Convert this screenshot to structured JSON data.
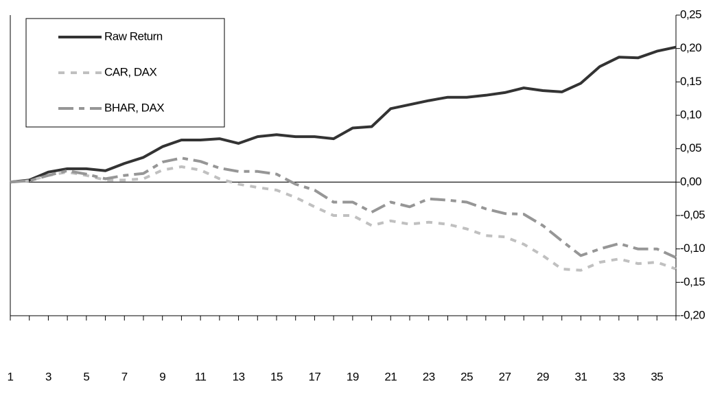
{
  "chart_data": {
    "type": "line",
    "categories": [
      "1",
      null,
      "3",
      null,
      "5",
      null,
      "7",
      null,
      "9",
      null,
      "11",
      null,
      "13",
      null,
      "15",
      null,
      "17",
      null,
      "19",
      null,
      "21",
      null,
      "23",
      null,
      "25",
      null,
      "27",
      null,
      "29",
      null,
      "31",
      null,
      "33",
      null,
      "35",
      null
    ],
    "series": [
      {
        "name": "Raw Return",
        "color": "#333333",
        "style": "solid",
        "values": [
          0,
          0.003,
          0.015,
          0.02,
          0.02,
          0.017,
          0.028,
          0.037,
          0.053,
          0.063,
          0.063,
          0.065,
          0.058,
          0.068,
          0.071,
          0.068,
          0.068,
          0.065,
          0.081,
          0.083,
          0.11,
          0.116,
          0.122,
          0.127,
          0.127,
          0.13,
          0.134,
          0.141,
          0.137,
          0.135,
          0.148,
          0.173,
          0.187,
          0.186,
          0.196,
          0.202
        ]
      },
      {
        "name": "CAR, DAX",
        "color": "#c0c0c0",
        "style": "dotted",
        "values": [
          0,
          0.002,
          0.01,
          0.015,
          0.01,
          0.003,
          0.003,
          0.005,
          0.018,
          0.023,
          0.018,
          0.005,
          -0.003,
          -0.008,
          -0.012,
          -0.023,
          -0.037,
          -0.05,
          -0.05,
          -0.065,
          -0.058,
          -0.063,
          -0.06,
          -0.063,
          -0.07,
          -0.08,
          -0.082,
          -0.093,
          -0.11,
          -0.13,
          -0.132,
          -0.12,
          -0.115,
          -0.122,
          -0.12,
          -0.13
        ]
      },
      {
        "name": "BHAR, DAX",
        "color": "#969696",
        "style": "dashdot",
        "values": [
          0,
          0.002,
          0.01,
          0.017,
          0.012,
          0.005,
          0.01,
          0.013,
          0.03,
          0.036,
          0.031,
          0.021,
          0.016,
          0.016,
          0.012,
          -0.003,
          -0.012,
          -0.03,
          -0.03,
          -0.045,
          -0.03,
          -0.037,
          -0.025,
          -0.027,
          -0.03,
          -0.04,
          -0.047,
          -0.048,
          -0.065,
          -0.088,
          -0.11,
          -0.1,
          -0.092,
          -0.1,
          -0.1,
          -0.113
        ]
      }
    ],
    "ylim": [
      -0.2,
      0.25
    ],
    "yticks": [
      {
        "value": 0.25,
        "label": "0,25"
      },
      {
        "value": 0.2,
        "label": "0,20"
      },
      {
        "value": 0.15,
        "label": "0,15"
      },
      {
        "value": 0.1,
        "label": "0,10"
      },
      {
        "value": 0.05,
        "label": "0,05"
      },
      {
        "value": 0,
        "label": "0,00"
      },
      {
        "value": -0.05,
        "label": "-0,05"
      },
      {
        "value": -0.1,
        "label": "-0,10"
      },
      {
        "value": -0.15,
        "label": "-0,15"
      },
      {
        "value": -0.2,
        "label": "-0,20"
      }
    ],
    "y_axis_side": "right",
    "legend": "top-left"
  }
}
